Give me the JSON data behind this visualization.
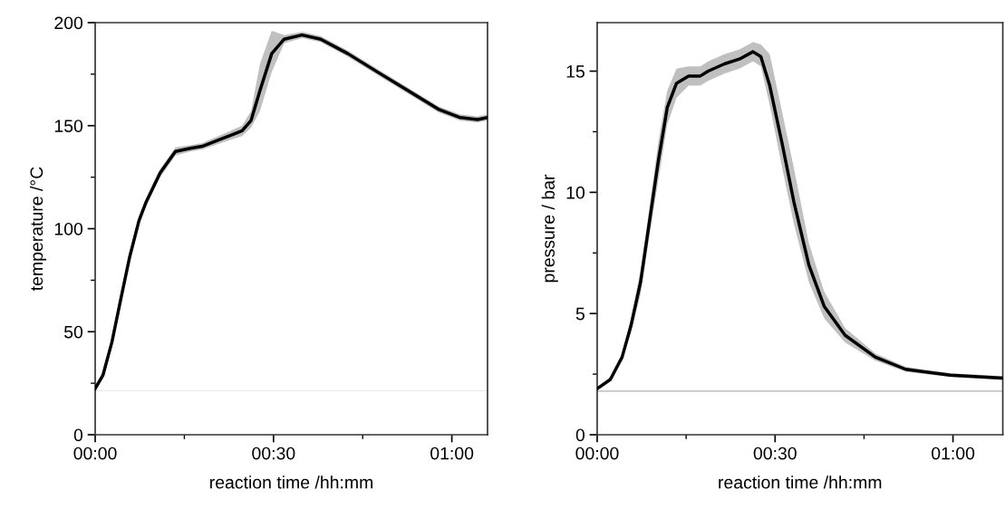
{
  "chart_data": [
    {
      "type": "line",
      "xlabel": "reaction time /hh:mm",
      "ylabel": "temperature /°C",
      "xlim": [
        0,
        1.1
      ],
      "ylim": [
        0,
        200
      ],
      "xticks": [
        {
          "value": 0,
          "label": "00:00"
        },
        {
          "value": 0.25,
          "label": null
        },
        {
          "value": 0.5,
          "label": "00:30"
        },
        {
          "value": 0.75,
          "label": null
        },
        {
          "value": 1.0,
          "label": "01:00"
        }
      ],
      "yticks": [
        0,
        {
          "value": 25,
          "label": null
        },
        50,
        {
          "value": 75,
          "label": null
        },
        100,
        {
          "value": 125,
          "label": null
        },
        150,
        {
          "value": 175,
          "label": null
        },
        200
      ],
      "grid": false,
      "legend": false,
      "marker": "none",
      "line_style": "solid",
      "ref_lines": [
        {
          "axis": "y",
          "value": 21.3,
          "color": "#e6e6e6"
        }
      ],
      "series": [
        {
          "color": "#000000",
          "x": [
            0,
            0.022,
            0.047,
            0.072,
            0.097,
            0.123,
            0.143,
            0.182,
            0.225,
            0.267,
            0.3,
            0.36,
            0.412,
            0.437,
            0.462,
            0.495,
            0.53,
            0.58,
            0.632,
            0.708,
            0.792,
            0.877,
            0.962,
            1.022,
            1.072,
            1.1
          ],
          "values": [
            22.4,
            29,
            45,
            66,
            86.5,
            104,
            113,
            127,
            137.5,
            139,
            140,
            144,
            147.5,
            152.5,
            167,
            185,
            192,
            194,
            192,
            185,
            176,
            167,
            158,
            154,
            153,
            154
          ],
          "lower": [
            21.5,
            27.5,
            43,
            64,
            84.5,
            102,
            111,
            125,
            135.5,
            137.5,
            138.5,
            142,
            145,
            149,
            157,
            176,
            190,
            192.5,
            190.5,
            183.5,
            174.5,
            165.5,
            156.5,
            152.5,
            151.5,
            152.5
          ],
          "upper": [
            23.5,
            30.5,
            47,
            68,
            88.5,
            106,
            115,
            129,
            139.5,
            140.5,
            141.5,
            146,
            150,
            157,
            180,
            196,
            194,
            195.5,
            193.5,
            186.5,
            177.5,
            168.5,
            159.5,
            155.5,
            154.5,
            155.5
          ]
        }
      ]
    },
    {
      "type": "line",
      "xlabel": "reaction time /hh:mm",
      "ylabel": "pressure / bar",
      "xlim": [
        0,
        1.14
      ],
      "ylim": [
        0,
        17
      ],
      "xticks": [
        {
          "value": 0,
          "label": "00:00"
        },
        {
          "value": 0.25,
          "label": null
        },
        {
          "value": 0.5,
          "label": "00:30"
        },
        {
          "value": 0.75,
          "label": null
        },
        {
          "value": 1.0,
          "label": "01:00"
        }
      ],
      "yticks": [
        0,
        {
          "value": 2.5,
          "label": null
        },
        5,
        {
          "value": 7.5,
          "label": null
        },
        10,
        {
          "value": 12.5,
          "label": null
        },
        15
      ],
      "grid": false,
      "legend": false,
      "marker": "none",
      "line_style": "solid",
      "ref_lines": [
        {
          "axis": "y",
          "value": 1.8,
          "color": "#b0b0b0"
        }
      ],
      "series": [
        {
          "color": "#000000",
          "x": [
            0,
            0.037,
            0.07,
            0.095,
            0.122,
            0.147,
            0.172,
            0.197,
            0.223,
            0.257,
            0.29,
            0.312,
            0.358,
            0.4,
            0.438,
            0.46,
            0.485,
            0.52,
            0.553,
            0.595,
            0.638,
            0.697,
            0.782,
            0.867,
            0.993,
            1.14
          ],
          "values": [
            1.9,
            2.28,
            3.2,
            4.5,
            6.3,
            8.8,
            11.3,
            13.5,
            14.5,
            14.8,
            14.8,
            15.0,
            15.3,
            15.5,
            15.8,
            15.6,
            14.4,
            12.0,
            9.6,
            7.0,
            5.3,
            4.1,
            3.2,
            2.7,
            2.46,
            2.34
          ],
          "lower": [
            1.85,
            2.2,
            3.1,
            4.2,
            5.8,
            8.2,
            10.5,
            12.8,
            13.9,
            14.4,
            14.4,
            14.6,
            14.9,
            15.1,
            15.4,
            15.2,
            13.6,
            11.0,
            8.7,
            6.3,
            4.8,
            3.8,
            3.05,
            2.6,
            2.38,
            2.26
          ],
          "upper": [
            1.95,
            2.35,
            3.3,
            4.8,
            6.8,
            9.4,
            12.1,
            14.2,
            15.1,
            15.2,
            15.2,
            15.4,
            15.7,
            15.9,
            16.2,
            16.1,
            15.7,
            13.3,
            11.0,
            7.9,
            5.9,
            4.4,
            3.35,
            2.8,
            2.54,
            2.42
          ]
        }
      ]
    }
  ]
}
